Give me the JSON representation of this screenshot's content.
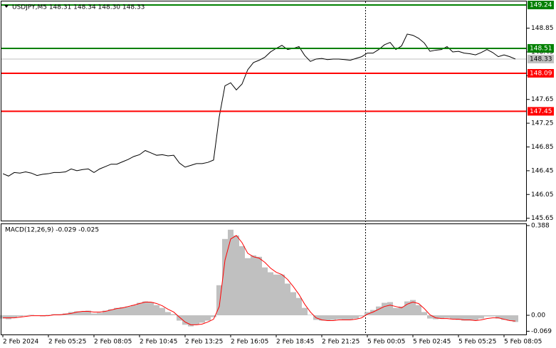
{
  "chart_data": [
    {
      "type": "line",
      "title": "USDJPY,M5  148.31 148.34 148.30 148.33",
      "categories": [
        "2 Feb 2024",
        null,
        null,
        null,
        null,
        null,
        null,
        null,
        "2 Feb 05:25",
        null,
        null,
        null,
        null,
        null,
        null,
        null,
        "2 Feb 08:05",
        null,
        null,
        null,
        null,
        null,
        null,
        null,
        "2 Feb 10:45",
        null,
        null,
        null,
        null,
        null,
        null,
        null,
        "2 Feb 13:25",
        null,
        null,
        null,
        null,
        null,
        null,
        null,
        "2 Feb 16:05",
        null,
        null,
        null,
        null,
        null,
        null,
        null,
        "2 Feb 18:45",
        null,
        null,
        null,
        null,
        null,
        null,
        null,
        "2 Feb 21:25",
        null,
        null,
        null,
        null,
        null,
        null,
        null,
        "5 Feb 00:05",
        null,
        null,
        null,
        null,
        null,
        null,
        null,
        "5 Feb 02:45",
        null,
        null,
        null,
        null,
        null,
        null,
        null,
        "5 Feb 05:25",
        null,
        null,
        null,
        null,
        null,
        null,
        null,
        "5 Feb 08:05",
        null,
        null
      ],
      "series": [
        {
          "color": "#000000",
          "values": [
            146.4,
            146.36,
            146.42,
            146.41,
            146.43,
            146.41,
            146.37,
            146.39,
            146.4,
            146.42,
            146.42,
            146.43,
            146.48,
            146.45,
            146.47,
            146.48,
            146.42,
            146.48,
            146.52,
            146.56,
            146.56,
            146.6,
            146.64,
            146.69,
            146.72,
            146.79,
            146.75,
            146.71,
            146.72,
            146.7,
            146.71,
            146.58,
            146.51,
            146.54,
            146.57,
            146.57,
            146.59,
            146.63,
            147.36,
            147.88,
            147.93,
            147.81,
            147.91,
            148.15,
            148.27,
            148.31,
            148.36,
            148.45,
            148.51,
            148.56,
            148.49,
            148.51,
            148.54,
            148.39,
            148.29,
            148.33,
            148.34,
            148.32,
            148.33,
            148.33,
            148.32,
            148.31,
            148.34,
            148.37,
            148.43,
            148.43,
            148.49,
            148.57,
            148.61,
            148.49,
            148.55,
            148.75,
            148.73,
            148.68,
            148.6,
            148.46,
            148.48,
            148.49,
            148.54,
            148.45,
            148.46,
            148.43,
            148.42,
            148.4,
            148.44,
            148.49,
            148.44,
            148.37,
            148.4,
            148.37,
            148.33
          ]
        }
      ],
      "ylim": [
        145.61,
        149.3
      ],
      "yticks": [
        145.65,
        146.05,
        146.45,
        146.85,
        147.25,
        147.65,
        148.05,
        148.45,
        148.85
      ],
      "levels": [
        {
          "value": 149.24,
          "color": "#008000"
        },
        {
          "value": 148.51,
          "color": "#008000"
        },
        {
          "value": 148.09,
          "color": "#ff0000"
        },
        {
          "value": 147.45,
          "color": "#ff0000"
        }
      ],
      "last_price": {
        "value": 148.33,
        "color": "#c0c0c0"
      }
    },
    {
      "type": "bar",
      "title": "MACD(12,26,9) -0.029 -0.025",
      "series": [
        {
          "type": "bar",
          "color": "#c0c0c0",
          "values": [
            -0.014,
            -0.017,
            -0.011,
            -0.005,
            -0.002,
            0.002,
            -0.002,
            -0.005,
            0.002,
            0.005,
            0.005,
            0.008,
            0.014,
            0.017,
            0.017,
            0.02,
            0.008,
            0.011,
            0.02,
            0.026,
            0.032,
            0.035,
            0.038,
            0.044,
            0.054,
            0.06,
            0.057,
            0.044,
            0.032,
            0.014,
            0.005,
            -0.023,
            -0.041,
            -0.048,
            -0.041,
            -0.032,
            -0.023,
            -0.008,
            0.13,
            0.33,
            0.37,
            0.345,
            0.299,
            0.247,
            0.259,
            0.253,
            0.207,
            0.186,
            0.176,
            0.176,
            0.137,
            0.1,
            0.075,
            0.032,
            0.002,
            -0.02,
            -0.023,
            -0.023,
            -0.02,
            -0.017,
            -0.02,
            -0.02,
            -0.014,
            -0.005,
            0.014,
            0.023,
            0.038,
            0.054,
            0.057,
            0.032,
            0.038,
            0.06,
            0.066,
            0.044,
            0.014,
            -0.014,
            -0.017,
            -0.014,
            -0.011,
            -0.017,
            -0.02,
            -0.023,
            -0.023,
            -0.023,
            -0.014,
            -0.005,
            -0.005,
            -0.014,
            -0.02,
            -0.023,
            -0.029
          ]
        },
        {
          "type": "line",
          "color": "#ff0000",
          "values": [
            -0.011,
            -0.011,
            -0.011,
            -0.008,
            -0.005,
            -0.002,
            -0.002,
            -0.002,
            -0.002,
            0.002,
            0.002,
            0.005,
            0.008,
            0.014,
            0.017,
            0.017,
            0.014,
            0.014,
            0.017,
            0.023,
            0.029,
            0.032,
            0.038,
            0.044,
            0.051,
            0.057,
            0.057,
            0.051,
            0.041,
            0.026,
            0.014,
            -0.008,
            -0.029,
            -0.041,
            -0.041,
            -0.038,
            -0.029,
            -0.017,
            0.038,
            0.238,
            0.33,
            0.345,
            0.314,
            0.268,
            0.253,
            0.247,
            0.229,
            0.204,
            0.186,
            0.176,
            0.155,
            0.124,
            0.09,
            0.048,
            0.014,
            -0.011,
            -0.02,
            -0.023,
            -0.023,
            -0.02,
            -0.02,
            -0.02,
            -0.017,
            -0.011,
            0.005,
            0.014,
            0.026,
            0.038,
            0.044,
            0.038,
            0.032,
            0.048,
            0.057,
            0.051,
            0.029,
            0.002,
            -0.011,
            -0.014,
            -0.014,
            -0.017,
            -0.017,
            -0.02,
            -0.02,
            -0.023,
            -0.02,
            -0.014,
            -0.011,
            -0.011,
            -0.017,
            -0.023,
            -0.025
          ]
        }
      ],
      "ylim": [
        -0.083,
        0.394
      ],
      "yticks": [
        0.388,
        {
          "value": 0,
          "label": "0.00"
        },
        -0.069
      ]
    }
  ]
}
